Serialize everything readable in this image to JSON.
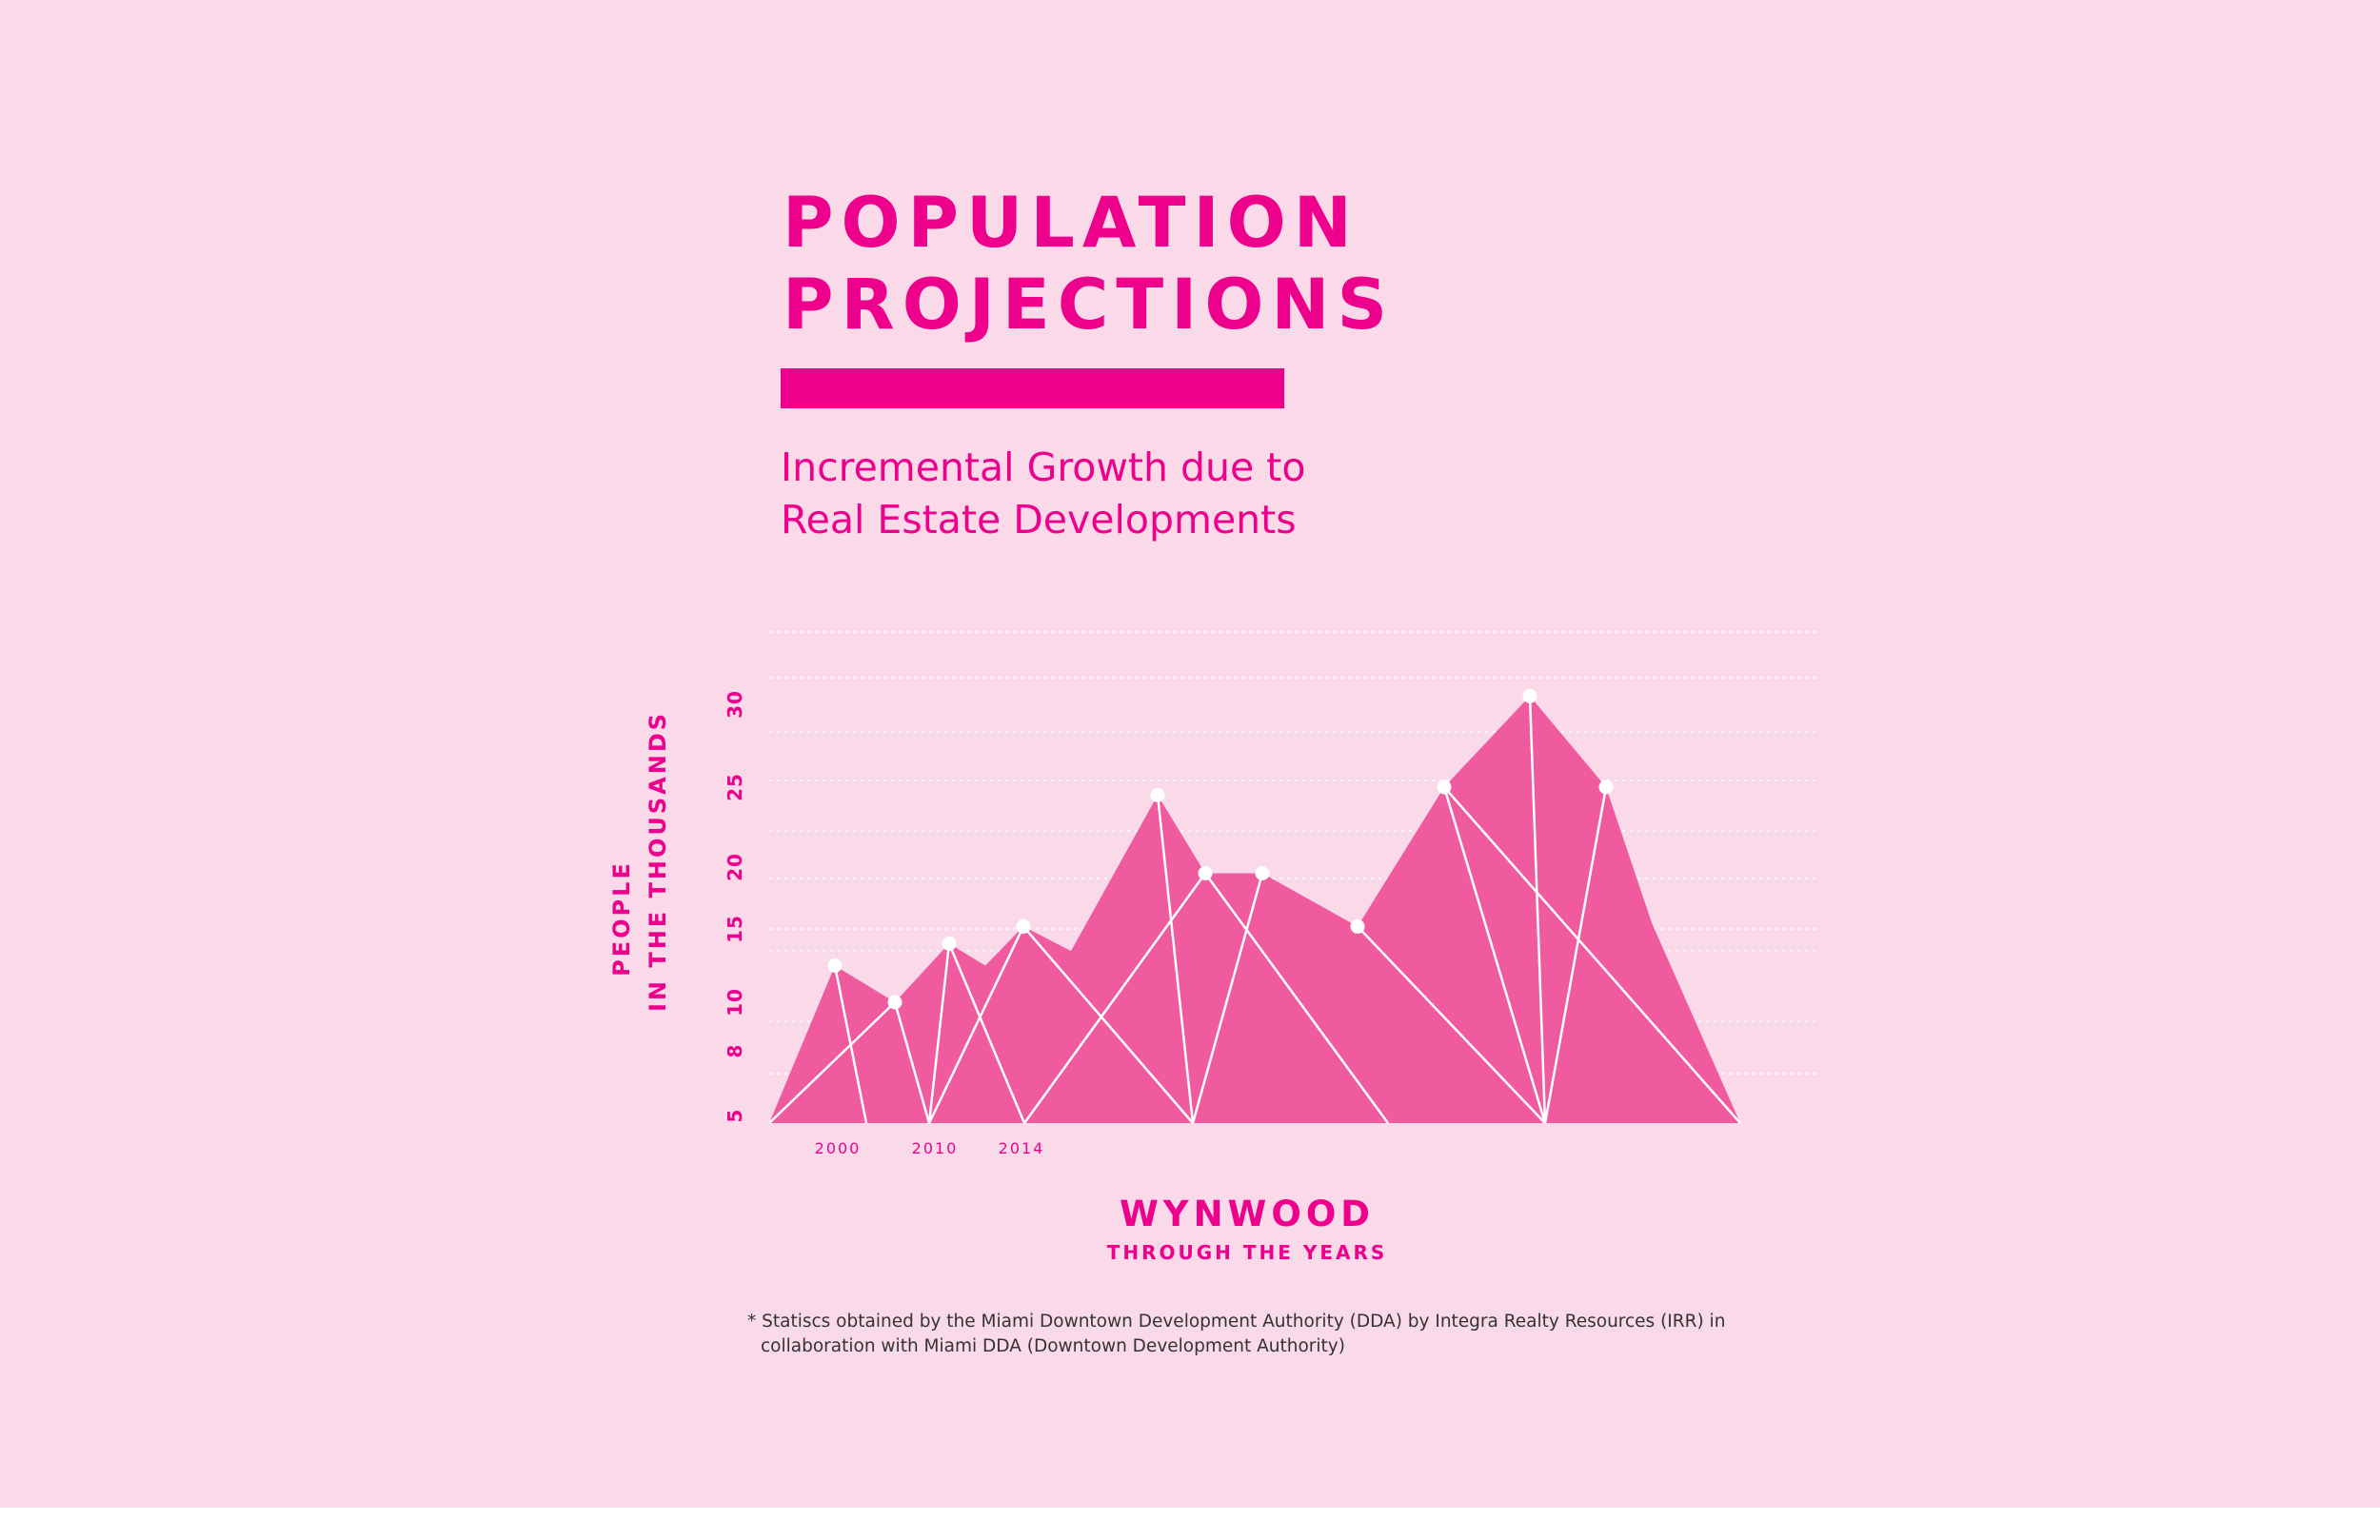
{
  "header": {
    "title_line1": "POPULATION",
    "title_line2": "PROJECTIONS",
    "subtitle_line1": "Incremental Growth due to",
    "subtitle_line2": "Real Estate Developments"
  },
  "axis": {
    "ylabel_line1": "PEOPLE",
    "ylabel_line2": "IN THE THOUSANDS",
    "xlabel_main": "WYNWOOD",
    "xlabel_sub": "THROUGH THE YEARS"
  },
  "footnote": {
    "line1": "* Statiscs obtained by the Miami Downtown Development Authority (DDA) by Integra Realty Resources  (IRR) in",
    "line2": "collaboration with Miami DDA (Downtown Development Authority)"
  },
  "colors": {
    "background": "#fadae8",
    "accent": "#ec008c",
    "fill": "#f05a9e",
    "lines": "#ffffff"
  },
  "chart_data": {
    "type": "area",
    "title": "POPULATION PROJECTIONS",
    "subtitle": "Incremental Growth due to Real Estate Developments",
    "xlabel": "WYNWOOD THROUGH THE YEARS",
    "ylabel": "PEOPLE IN THE THOUSANDS",
    "y_ticks": [
      "5",
      "8",
      "10",
      "15",
      "20",
      "25",
      "30"
    ],
    "x_ticks": [
      "2000",
      "2010",
      "2014"
    ],
    "ylim": [
      5,
      30
    ],
    "grid": "dotted horizontal",
    "peaks": [
      {
        "value": 12.5,
        "marked": true
      },
      {
        "value": 10,
        "marked": true
      },
      {
        "value": 14,
        "marked": true
      },
      {
        "value": 12.5,
        "marked": false
      },
      {
        "value": 15.2,
        "marked": true
      },
      {
        "value": 13.5,
        "marked": false
      },
      {
        "value": 24.5,
        "marked": true
      },
      {
        "value": 19.5,
        "marked": true
      },
      {
        "value": 19.5,
        "marked": true
      },
      {
        "value": 15.2,
        "marked": true
      },
      {
        "value": 25,
        "marked": true
      },
      {
        "value": 30.5,
        "marked": true
      },
      {
        "value": 25,
        "marked": true
      },
      {
        "value": 15.5,
        "marked": false
      }
    ]
  }
}
